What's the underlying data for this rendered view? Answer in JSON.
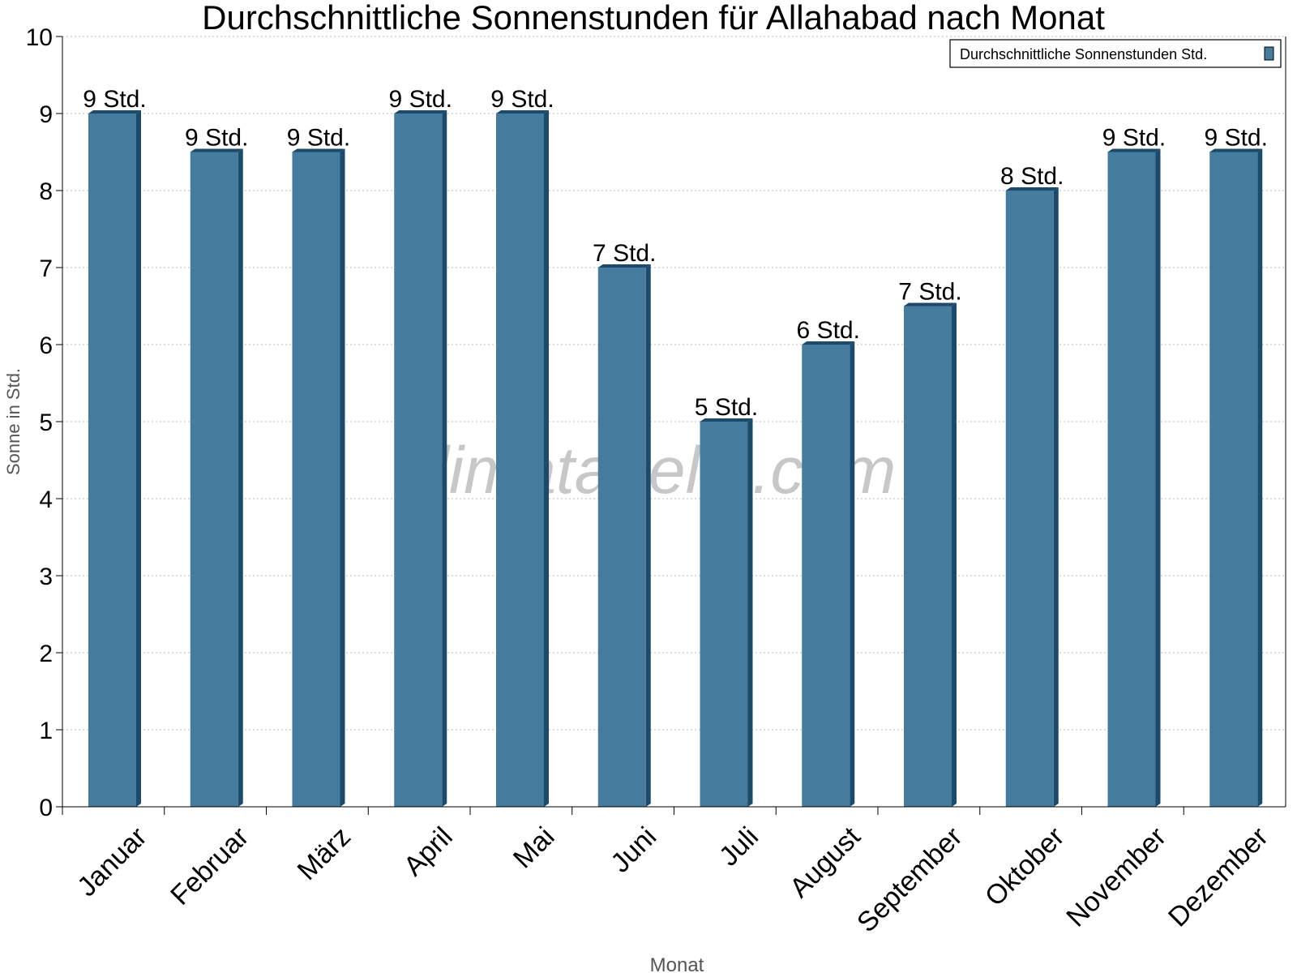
{
  "chart_data": {
    "type": "bar",
    "title": "Durchschnittliche Sonnenstunden für Allahabad nach Monat",
    "xlabel": "Monat",
    "ylabel": "Sonne in Std.",
    "ylim": [
      0,
      10
    ],
    "yticks": [
      "0",
      "1",
      "2",
      "3",
      "4",
      "5",
      "6",
      "7",
      "8",
      "9",
      "10"
    ],
    "grid": true,
    "legend_position": "top-right",
    "categories": [
      "Januar",
      "Februar",
      "März",
      "April",
      "Mai",
      "Juni",
      "Juli",
      "August",
      "September",
      "Oktober",
      "November",
      "Dezember"
    ],
    "series": [
      {
        "name": "Durchschnittliche Sonnenstunden Std.",
        "values": [
          9,
          8.5,
          8.5,
          9,
          9,
          7,
          5,
          6,
          6.5,
          8,
          8.5,
          8.5
        ],
        "data_labels": [
          "9 Std.",
          "9 Std.",
          "9 Std.",
          "9 Std.",
          "9 Std.",
          "7 Std.",
          "5 Std.",
          "6 Std.",
          "7 Std.",
          "8 Std.",
          "9 Std.",
          "9 Std."
        ],
        "color": "#457b9d",
        "side_color": "#1b4a6b"
      }
    ],
    "watermark": "klimatabelle.com"
  }
}
